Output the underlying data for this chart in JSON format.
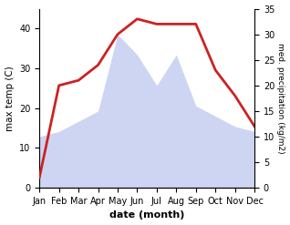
{
  "months": [
    "Jan",
    "Feb",
    "Mar",
    "Apr",
    "May",
    "Jun",
    "Jul",
    "Aug",
    "Sep",
    "Oct",
    "Nov",
    "Dec"
  ],
  "temperature": [
    2,
    20,
    21,
    24,
    30,
    33,
    32,
    32,
    32,
    23,
    18,
    12
  ],
  "precipitation": [
    10,
    11,
    13,
    15,
    30,
    26,
    20,
    26,
    16,
    14,
    12,
    11
  ],
  "temp_color": "#cc2222",
  "precip_color": "#b8c4ee",
  "xlabel": "date (month)",
  "ylabel_left": "max temp (C)",
  "ylabel_right": "med. precipitation (kg/m2)",
  "ylim_left": [
    0,
    45
  ],
  "ylim_right": [
    0,
    35
  ],
  "yticks_left": [
    0,
    10,
    20,
    30,
    40
  ],
  "yticks_right": [
    0,
    5,
    10,
    15,
    20,
    25,
    30,
    35
  ],
  "bg_color": "#ffffff",
  "figsize": [
    3.18,
    2.47
  ],
  "dpi": 100
}
